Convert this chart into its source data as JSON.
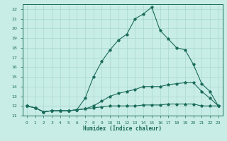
{
  "xlabel": "Humidex (Indice chaleur)",
  "bg_color": "#c8ece6",
  "grid_color": "#a8d8ce",
  "line_color": "#1a6b5a",
  "xlim": [
    -0.5,
    23.5
  ],
  "ylim": [
    11,
    22.5
  ],
  "xticks": [
    0,
    1,
    2,
    3,
    4,
    5,
    6,
    7,
    8,
    9,
    10,
    11,
    12,
    13,
    14,
    15,
    16,
    17,
    18,
    19,
    20,
    21,
    22,
    23
  ],
  "yticks": [
    11,
    12,
    13,
    14,
    15,
    16,
    17,
    18,
    19,
    20,
    21,
    22
  ],
  "line1_x": [
    0,
    1,
    2,
    3,
    4,
    5,
    6,
    7,
    8,
    9,
    10,
    11,
    12,
    13,
    14,
    15,
    16,
    17,
    18,
    19,
    20,
    21,
    22,
    23
  ],
  "line1_y": [
    12.0,
    11.8,
    11.4,
    11.5,
    11.5,
    11.5,
    11.6,
    11.7,
    11.8,
    11.9,
    12.0,
    12.0,
    12.0,
    12.0,
    12.1,
    12.1,
    12.1,
    12.2,
    12.2,
    12.2,
    12.2,
    12.0,
    12.0,
    12.0
  ],
  "line2_x": [
    0,
    1,
    2,
    3,
    4,
    5,
    6,
    7,
    8,
    9,
    10,
    11,
    12,
    13,
    14,
    15,
    16,
    17,
    18,
    19,
    20,
    21,
    22,
    23
  ],
  "line2_y": [
    12.0,
    11.8,
    11.4,
    11.5,
    11.5,
    11.5,
    11.6,
    11.7,
    12.0,
    12.5,
    13.0,
    13.3,
    13.5,
    13.7,
    14.0,
    14.0,
    14.0,
    14.2,
    14.3,
    14.4,
    14.4,
    13.5,
    12.8,
    12.0
  ],
  "line3_x": [
    0,
    1,
    2,
    3,
    4,
    5,
    6,
    7,
    8,
    9,
    10,
    11,
    12,
    13,
    14,
    15,
    16,
    17,
    18,
    19,
    20,
    21,
    22,
    23
  ],
  "line3_y": [
    12.0,
    11.8,
    11.4,
    11.5,
    11.5,
    11.5,
    11.6,
    12.8,
    15.0,
    16.6,
    17.8,
    18.8,
    19.4,
    21.0,
    21.5,
    22.2,
    19.8,
    18.9,
    18.0,
    17.8,
    16.3,
    14.3,
    13.5,
    12.0
  ]
}
